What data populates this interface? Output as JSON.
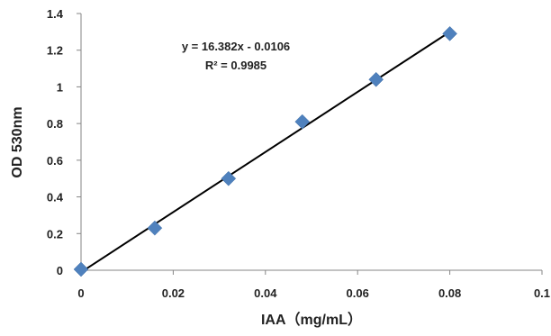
{
  "chart_data": {
    "type": "scatter",
    "xlabel": "IAA（mg/mL）",
    "ylabel": "OD 530nm",
    "xlim": [
      0,
      0.1
    ],
    "ylim": [
      0,
      1.4
    ],
    "x_ticks": [
      0,
      0.02,
      0.04,
      0.06,
      0.08,
      0.1
    ],
    "x_tick_labels": [
      "0",
      "0.02",
      "0.04",
      "0.06",
      "0.08",
      "0.1"
    ],
    "y_ticks": [
      0,
      0.2,
      0.4,
      0.6,
      0.8,
      1.0,
      1.2,
      1.4
    ],
    "y_tick_labels": [
      "0",
      "0.2",
      "0.4",
      "0.6",
      "0.8",
      "1",
      "1.2",
      "1.4"
    ],
    "grid": false,
    "series": [
      {
        "marker": "diamond",
        "color": "#4F81BD",
        "x": [
          0,
          0.016,
          0.032,
          0.048,
          0.064,
          0.08
        ],
        "y": [
          0.005,
          0.23,
          0.5,
          0.81,
          1.04,
          1.29
        ]
      }
    ],
    "trendline": {
      "type": "linear",
      "slope": 16.382,
      "intercept": -0.0106,
      "x_range": [
        0,
        0.08
      ],
      "color": "#000000",
      "equation": "y = 16.382x - 0.0106",
      "r_squared": "R² = 0.9985"
    }
  }
}
